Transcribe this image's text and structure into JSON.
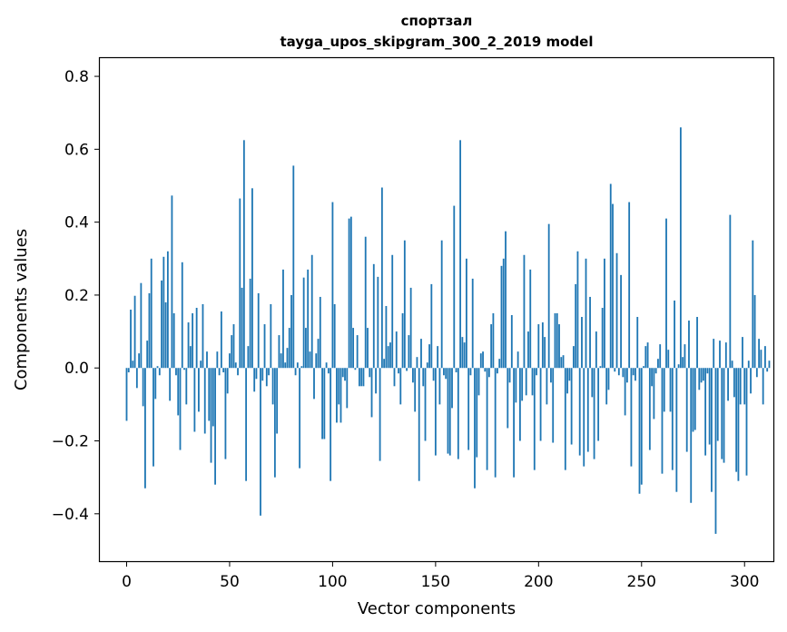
{
  "chart_data": {
    "type": "bar",
    "title": "спортзал",
    "subtitle": "tayga_upos_skipgram_300_2_2019 model",
    "xlabel": "Vector components",
    "ylabel": "Components values",
    "xlim": [
      -13,
      314
    ],
    "ylim": [
      -0.53,
      0.85
    ],
    "xticks": [
      0,
      50,
      100,
      150,
      200,
      250,
      300
    ],
    "xtick_labels": [
      "0",
      "50",
      "100",
      "150",
      "200",
      "250",
      "300"
    ],
    "yticks": [
      -0.4,
      -0.2,
      0.0,
      0.2,
      0.4,
      0.6,
      0.8
    ],
    "ytick_labels": [
      "−0.4",
      "−0.2",
      "0.0",
      "0.2",
      "0.4",
      "0.6",
      "0.8"
    ],
    "grid": false,
    "bar_color": "#1f77b4",
    "x_start": 0,
    "values": [
      -0.145,
      -0.012,
      0.16,
      0.02,
      0.198,
      -0.055,
      0.04,
      0.233,
      -0.105,
      -0.33,
      0.075,
      0.205,
      0.3,
      -0.27,
      -0.085,
      0.005,
      -0.02,
      0.24,
      0.305,
      0.18,
      0.32,
      -0.09,
      0.473,
      0.15,
      -0.02,
      -0.13,
      -0.225,
      0.29,
      -0.005,
      -0.1,
      0.125,
      0.06,
      0.15,
      -0.175,
      0.165,
      -0.12,
      0.02,
      0.175,
      -0.18,
      0.045,
      -0.145,
      -0.26,
      -0.16,
      -0.32,
      0.045,
      -0.02,
      0.155,
      -0.012,
      -0.25,
      -0.07,
      0.04,
      0.09,
      0.12,
      0.015,
      -0.02,
      0.465,
      0.22,
      0.625,
      -0.31,
      0.06,
      0.245,
      0.493,
      -0.065,
      -0.03,
      0.205,
      -0.405,
      -0.035,
      0.12,
      -0.05,
      -0.02,
      0.175,
      -0.1,
      -0.3,
      -0.18,
      0.09,
      0.04,
      0.27,
      0.015,
      0.055,
      0.11,
      0.2,
      0.555,
      -0.02,
      0.015,
      -0.275,
      0.005,
      0.248,
      0.11,
      0.27,
      0.045,
      0.31,
      -0.085,
      0.04,
      0.08,
      0.195,
      -0.195,
      -0.195,
      0.015,
      -0.015,
      -0.31,
      0.455,
      0.175,
      -0.15,
      -0.1,
      -0.15,
      -0.025,
      -0.035,
      -0.11,
      0.41,
      0.415,
      0.11,
      -0.005,
      0.09,
      -0.05,
      -0.05,
      -0.05,
      0.36,
      0.11,
      -0.025,
      -0.135,
      0.285,
      -0.07,
      0.25,
      -0.255,
      0.495,
      0.025,
      0.17,
      0.06,
      0.07,
      0.31,
      -0.05,
      0.1,
      -0.015,
      -0.1,
      0.15,
      0.35,
      -0.008,
      0.09,
      0.22,
      -0.04,
      -0.12,
      0.03,
      -0.31,
      0.08,
      -0.05,
      -0.2,
      0.015,
      0.065,
      0.23,
      -0.035,
      -0.24,
      0.06,
      -0.1,
      0.35,
      -0.02,
      -0.03,
      -0.235,
      -0.24,
      -0.11,
      0.445,
      -0.012,
      -0.25,
      0.625,
      0.085,
      0.07,
      0.3,
      -0.225,
      -0.02,
      0.245,
      -0.33,
      -0.245,
      -0.075,
      0.04,
      0.045,
      -0.01,
      -0.28,
      -0.025,
      0.12,
      0.15,
      -0.3,
      -0.015,
      0.025,
      0.28,
      0.3,
      0.375,
      -0.165,
      -0.04,
      0.145,
      -0.3,
      -0.095,
      0.045,
      -0.2,
      -0.09,
      0.31,
      -0.075,
      0.1,
      0.27,
      -0.075,
      -0.28,
      -0.02,
      0.12,
      -0.2,
      0.125,
      0.085,
      -0.1,
      0.395,
      -0.04,
      -0.205,
      0.15,
      0.15,
      0.12,
      0.03,
      0.035,
      -0.28,
      -0.07,
      -0.035,
      -0.21,
      0.06,
      0.23,
      0.32,
      -0.24,
      0.14,
      -0.27,
      0.3,
      -0.23,
      0.195,
      -0.08,
      -0.25,
      0.1,
      -0.2,
      0.005,
      0.165,
      0.3,
      -0.1,
      -0.06,
      0.505,
      0.45,
      -0.01,
      0.315,
      -0.02,
      0.255,
      -0.025,
      -0.13,
      -0.04,
      0.455,
      -0.27,
      -0.02,
      -0.035,
      0.14,
      -0.345,
      -0.32,
      0.005,
      0.06,
      0.07,
      -0.225,
      -0.05,
      -0.14,
      -0.015,
      0.025,
      0.065,
      -0.29,
      -0.12,
      0.41,
      0.05,
      -0.12,
      -0.28,
      0.185,
      -0.34,
      0.01,
      0.66,
      0.03,
      0.065,
      -0.23,
      0.13,
      -0.37,
      -0.175,
      -0.17,
      0.14,
      -0.06,
      -0.04,
      -0.035,
      -0.24,
      -0.015,
      -0.21,
      -0.34,
      0.08,
      -0.455,
      -0.2,
      0.075,
      -0.25,
      -0.26,
      0.07,
      -0.09,
      0.42,
      0.02,
      -0.08,
      -0.285,
      -0.31,
      -0.1,
      0.085,
      -0.1,
      -0.295,
      0.02,
      -0.07,
      0.35,
      0.2,
      -0.025,
      0.08,
      0.05,
      -0.1,
      0.06,
      -0.01,
      0.02
    ]
  }
}
